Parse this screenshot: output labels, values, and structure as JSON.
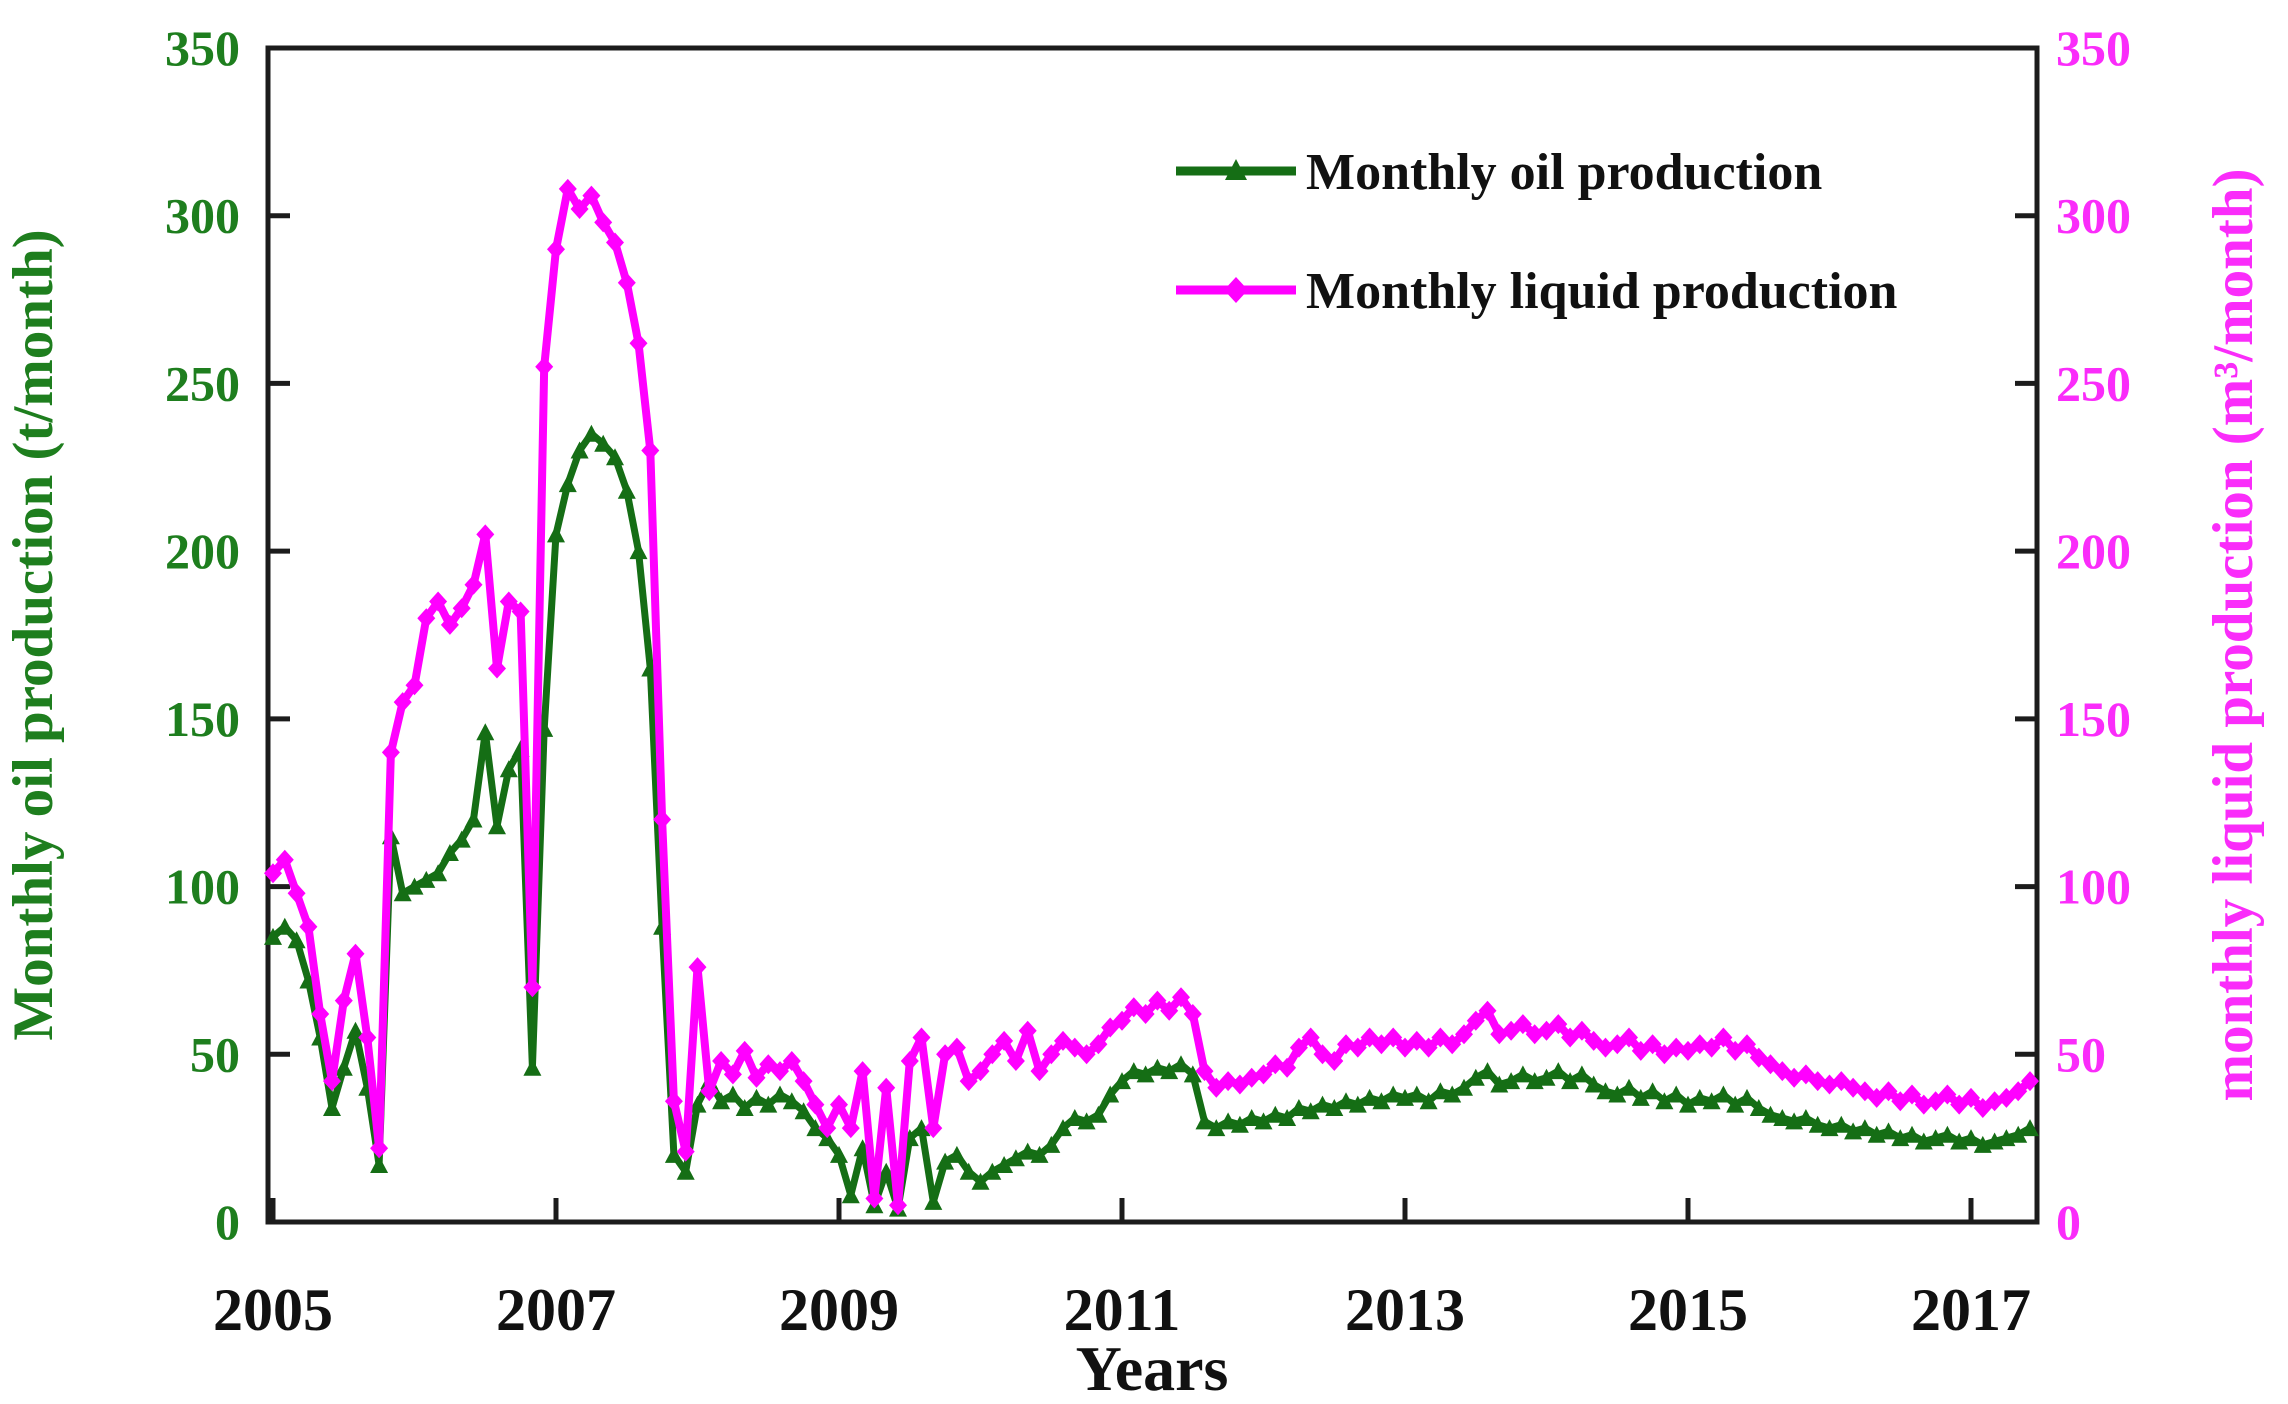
{
  "chart_data": {
    "type": "line",
    "title": "",
    "xlabel": "Years",
    "ylabel_left": "Monthly oil production (t/month)",
    "ylabel_right": "monthly liquid production (m³/month)",
    "x_tick_labels": [
      "2005",
      "2007",
      "2009",
      "2011",
      "2013",
      "2015",
      "2017"
    ],
    "x_tick_years": [
      2005,
      2007,
      2009,
      2011,
      2013,
      2015,
      2017
    ],
    "y_ticks": [
      0,
      50,
      100,
      150,
      200,
      250,
      300,
      350
    ],
    "ylim": [
      0,
      350
    ],
    "xlim": [
      2004.96,
      2017.47
    ],
    "x_start_year": 2005,
    "x_step_months": 1,
    "grid": false,
    "legend_position": "top-center-inside",
    "colors": {
      "oil_line": "#156e15",
      "oil_text": "#1e7e1e",
      "liquid_line": "#ff00ff",
      "liquid_text": "#fa2cfa",
      "axis_frame": "#1c1c1c",
      "black_text": "#111111"
    },
    "series": [
      {
        "name": "Monthly oil production",
        "axis": "left",
        "unit": "t/month",
        "marker": "triangle",
        "color": "#156e15",
        "values": [
          85,
          88,
          84,
          72,
          55,
          34,
          46,
          57,
          40,
          17,
          115,
          98,
          100,
          102,
          104,
          110,
          114,
          120,
          146,
          118,
          135,
          141,
          46,
          147,
          205,
          220,
          230,
          235,
          232,
          228,
          218,
          200,
          165,
          88,
          20,
          15,
          35,
          42,
          36,
          38,
          34,
          37,
          35,
          38,
          36,
          33,
          28,
          25,
          20,
          8,
          22,
          5,
          15,
          4,
          25,
          28,
          6,
          18,
          20,
          15,
          12,
          15,
          17,
          19,
          21,
          20,
          23,
          28,
          31,
          30,
          32,
          38,
          42,
          45,
          44,
          46,
          45,
          47,
          44,
          30,
          28,
          30,
          29,
          31,
          30,
          32,
          31,
          34,
          33,
          35,
          34,
          36,
          35,
          37,
          36,
          38,
          37,
          38,
          36,
          39,
          38,
          40,
          43,
          45,
          41,
          42,
          44,
          42,
          43,
          45,
          42,
          44,
          41,
          39,
          38,
          40,
          37,
          39,
          36,
          38,
          35,
          37,
          36,
          38,
          35,
          37,
          34,
          32,
          31,
          30,
          31,
          29,
          28,
          29,
          27,
          28,
          26,
          27,
          25,
          26,
          24,
          25,
          26,
          24,
          25,
          23,
          24,
          25,
          26,
          28
        ]
      },
      {
        "name": "Monthly liquid production",
        "axis": "right",
        "unit": "m³/month",
        "marker": "diamond",
        "color": "#ff00ff",
        "values": [
          104,
          108,
          98,
          88,
          62,
          42,
          66,
          80,
          55,
          22,
          140,
          155,
          160,
          180,
          185,
          178,
          183,
          190,
          205,
          165,
          185,
          182,
          70,
          255,
          290,
          308,
          302,
          306,
          298,
          292,
          280,
          262,
          230,
          120,
          36,
          21,
          76,
          39,
          48,
          44,
          51,
          43,
          47,
          45,
          48,
          42,
          35,
          28,
          35,
          28,
          45,
          7,
          40,
          5,
          48,
          55,
          28,
          50,
          52,
          42,
          45,
          50,
          54,
          48,
          57,
          45,
          50,
          54,
          52,
          50,
          53,
          58,
          60,
          64,
          62,
          66,
          63,
          67,
          62,
          45,
          40,
          42,
          41,
          43,
          44,
          47,
          46,
          52,
          55,
          50,
          48,
          53,
          52,
          55,
          53,
          55,
          52,
          54,
          52,
          55,
          53,
          56,
          60,
          63,
          56,
          57,
          59,
          56,
          57,
          59,
          55,
          57,
          54,
          52,
          53,
          55,
          51,
          53,
          50,
          52,
          51,
          53,
          52,
          55,
          51,
          53,
          49,
          47,
          45,
          43,
          44,
          42,
          41,
          42,
          40,
          39,
          37,
          39,
          36,
          38,
          35,
          36,
          38,
          35,
          37,
          34,
          36,
          37,
          39,
          42
        ]
      }
    ]
  }
}
